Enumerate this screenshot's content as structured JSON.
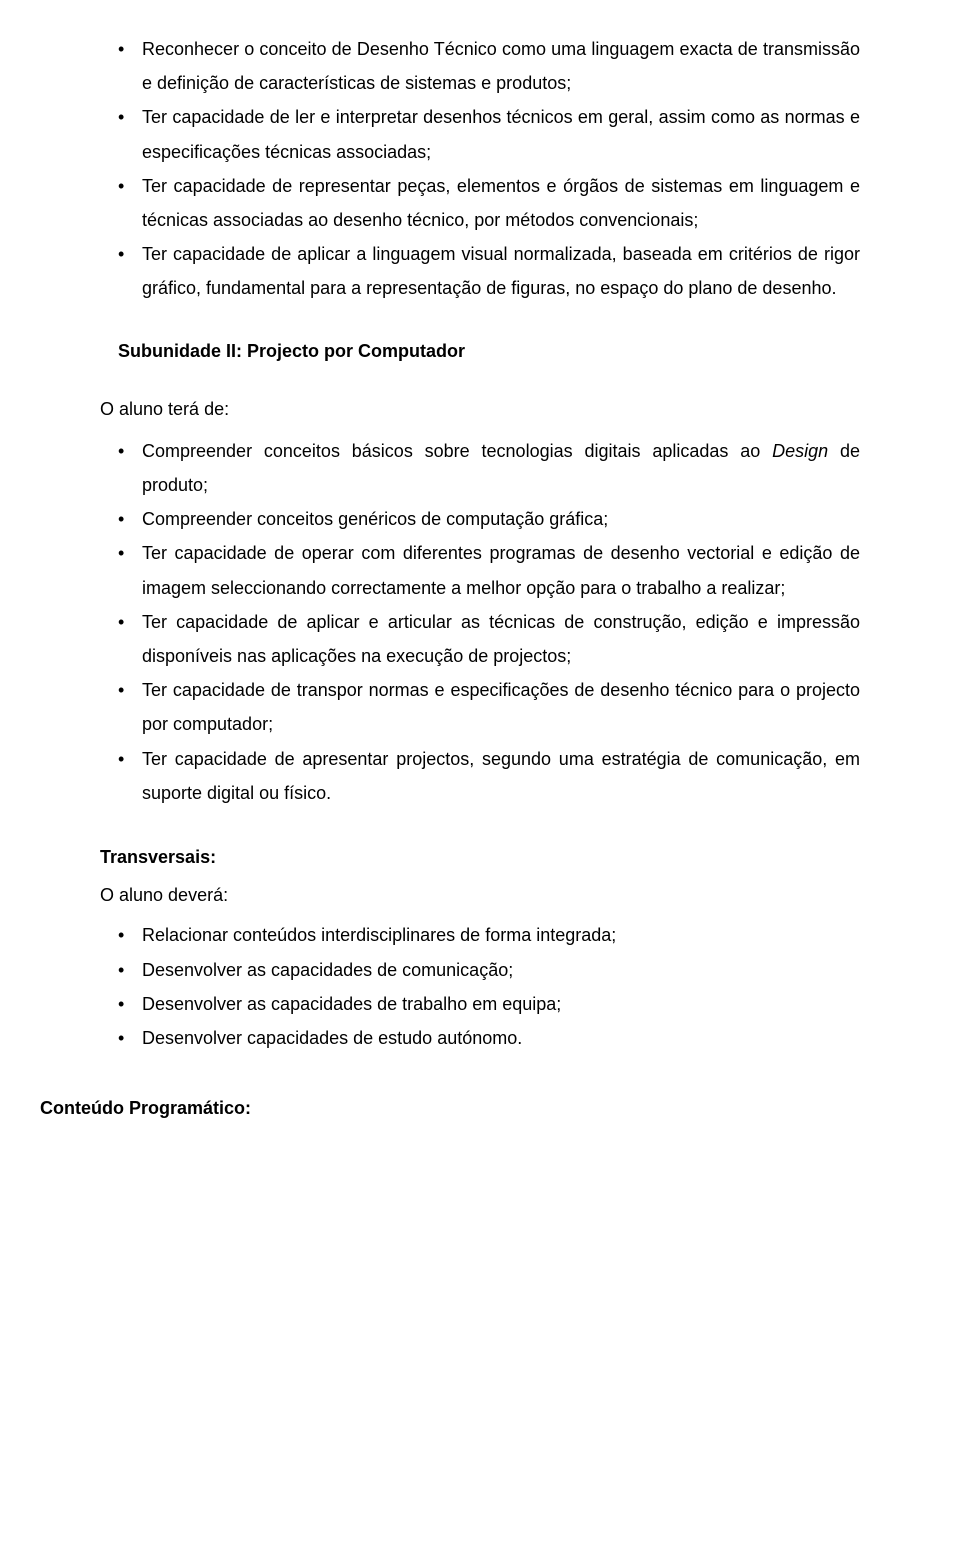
{
  "section1": {
    "items": [
      "Reconhecer o conceito de Desenho Técnico como uma linguagem exacta de transmissão e definição de características de sistemas e produtos;",
      "Ter capacidade de ler e interpretar desenhos técnicos em geral, assim como as normas e especificações técnicas associadas;",
      "Ter capacidade de representar peças, elementos e órgãos de sistemas em linguagem e técnicas associadas ao desenho técnico, por métodos convencionais;",
      "Ter capacidade de aplicar a linguagem visual normalizada, baseada em critérios de rigor gráfico, fundamental para a representação de figuras, no espaço do plano de desenho."
    ]
  },
  "sub2": {
    "heading": "Subunidade II: Projecto por Computador",
    "lead": "O aluno terá de:",
    "items_pre": "Compreender conceitos básicos sobre tecnologias digitais aplicadas ao ",
    "items_italic": "Design",
    "items_post": " de produto;",
    "items": [
      "Compreender conceitos genéricos de computação gráfica;",
      "Ter capacidade de operar com diferentes programas de desenho vectorial e edição de imagem seleccionando correctamente a melhor opção para o trabalho a realizar;",
      "Ter capacidade de aplicar e articular as técnicas de construção, edição e impressão disponíveis nas aplicações na execução de projectos;",
      "Ter capacidade de transpor normas e especificações de desenho técnico para o projecto por computador;",
      "Ter capacidade de apresentar projectos, segundo uma estratégia de comunicação, em suporte digital ou físico."
    ]
  },
  "trans": {
    "heading": "Transversais:",
    "lead": "O aluno deverá:",
    "items": [
      "Relacionar conteúdos interdisciplinares de forma integrada;",
      "Desenvolver as capacidades de comunicação;",
      "Desenvolver as capacidades de trabalho em equipa;",
      "Desenvolver capacidades de estudo autónomo."
    ]
  },
  "footer": {
    "heading": "Conteúdo Programático:"
  }
}
